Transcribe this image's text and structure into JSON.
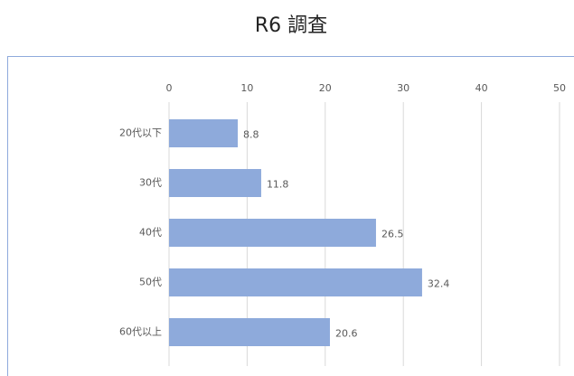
{
  "chart_data": {
    "type": "bar",
    "orientation": "horizontal",
    "title": "R6 調査",
    "categories": [
      "20代以下",
      "30代",
      "40代",
      "50代",
      "60代以上"
    ],
    "values": [
      8.8,
      11.8,
      26.5,
      32.4,
      20.6
    ],
    "color": "#8eaadb",
    "xlim": [
      0,
      50
    ],
    "xticks": [
      0,
      10,
      20,
      30,
      40,
      50
    ],
    "grid": true
  }
}
